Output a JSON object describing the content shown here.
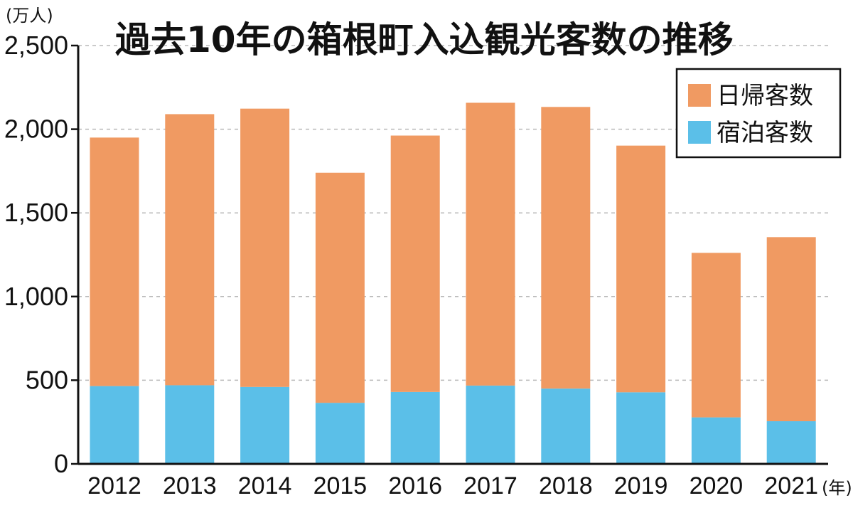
{
  "chart_data": {
    "type": "bar",
    "stacked": true,
    "title": "過去10年の箱根町入込観光客数の推移",
    "y_unit": "(万人)",
    "x_unit": "(年)",
    "ylim": [
      0,
      2500
    ],
    "yticks": [
      "0",
      "500",
      "1,000",
      "1,500",
      "2,000",
      "2,500"
    ],
    "ytick_values": [
      0,
      500,
      1000,
      1500,
      2000,
      2500
    ],
    "categories": [
      "2012",
      "2013",
      "2014",
      "2015",
      "2016",
      "2017",
      "2018",
      "2019",
      "2020",
      "2021"
    ],
    "series": [
      {
        "name": "宿泊客数",
        "color": "#5bbfe8",
        "values": [
          465,
          470,
          460,
          365,
          430,
          468,
          450,
          428,
          278,
          255
        ]
      },
      {
        "name": "日帰客数",
        "color": "#f09a62",
        "values": [
          1485,
          1620,
          1663,
          1375,
          1532,
          1690,
          1683,
          1474,
          983,
          1100
        ]
      }
    ],
    "grid": true,
    "legend_position": "top-right",
    "legend_order": [
      "日帰客数",
      "宿泊客数"
    ]
  }
}
